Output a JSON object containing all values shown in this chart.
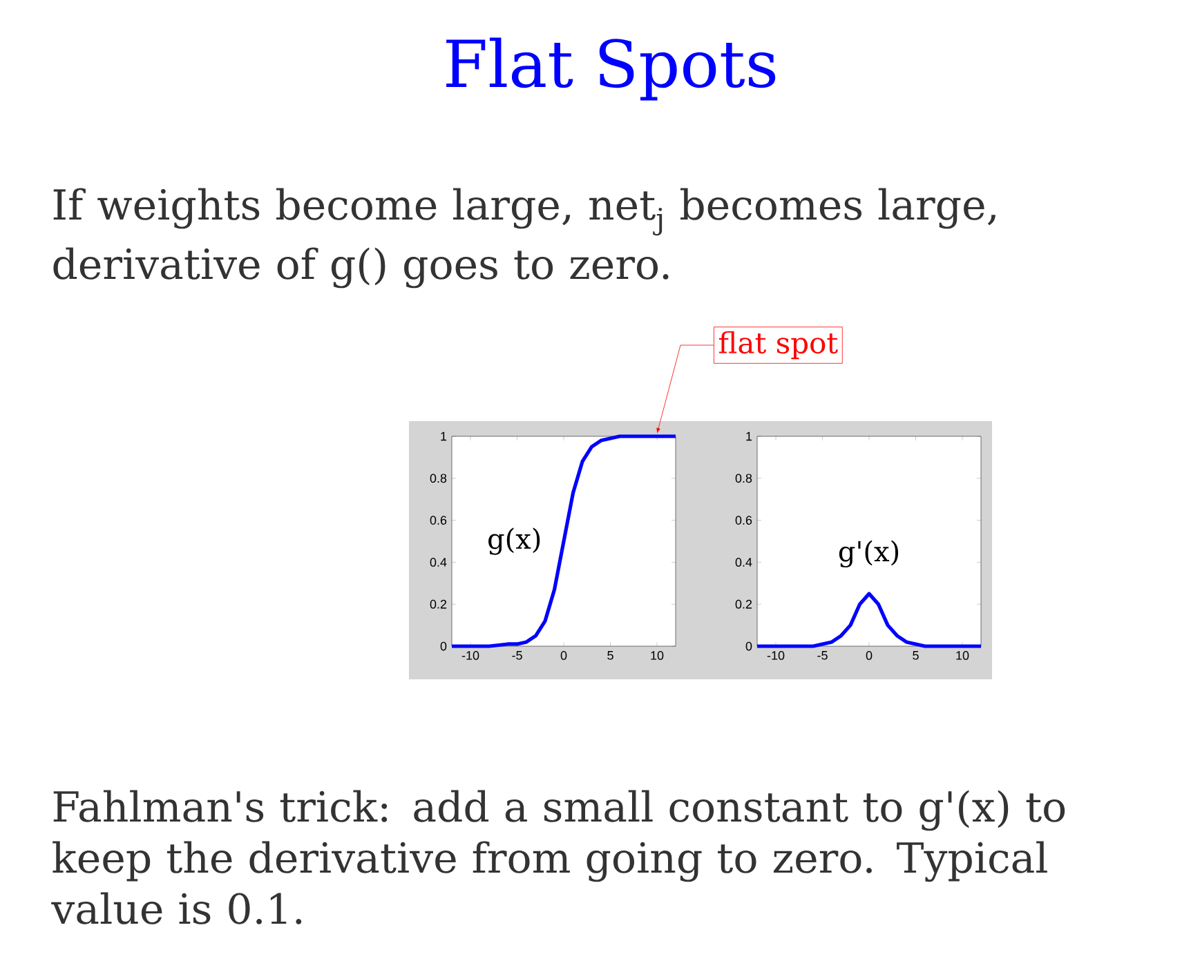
{
  "chart_data": [
    {
      "type": "line",
      "title": "Flat Spots",
      "annotations": [
        "If weights become large, net$_{j}$ becomes large, derivative of g() goes to zero.",
        {
          "text": "flat spot",
          "x": 10,
          "y": 1
        }
      ],
      "x": [
        -12,
        -8,
        -6,
        -5,
        -4,
        -3,
        -2,
        -1,
        0,
        1,
        2,
        3,
        4,
        5,
        6,
        8,
        12
      ],
      "series": [
        {
          "name": "g(x)",
          "color": "#0000ff",
          "values": [
            0,
            0,
            0.01,
            0.01,
            0.02,
            0.05,
            0.12,
            0.27,
            0.5,
            0.73,
            0.88,
            0.95,
            0.98,
            0.99,
            1,
            1,
            1
          ]
        }
      ],
      "xlim": [
        -12,
        12
      ],
      "ylim": [
        0,
        1
      ],
      "xticks": [
        -10,
        -5,
        0,
        5,
        10
      ],
      "yticks": [
        0,
        0.2,
        0.4,
        0.6,
        0.8,
        1
      ],
      "marker": "none",
      "line_style": "solid"
    },
    {
      "type": "line",
      "annotations": [
        "Fahlman's trick:  add a small constant to g'(x) to keep the derivative from going to zero.  Typical value is 0.1."
      ],
      "x": [
        -12,
        -8,
        -6,
        -5,
        -4,
        -3,
        -2,
        -1,
        0,
        1,
        2,
        3,
        4,
        5,
        6,
        8,
        12
      ],
      "series": [
        {
          "name": "g'(x)",
          "color": "#0000ff",
          "values": [
            0,
            0,
            0,
            0.01,
            0.02,
            0.05,
            0.1,
            0.2,
            0.25,
            0.2,
            0.1,
            0.05,
            0.02,
            0.01,
            0,
            0,
            0
          ]
        }
      ],
      "xlim": [
        -12,
        12
      ],
      "ylim": [
        0,
        1
      ],
      "xticks": [
        -10,
        -5,
        0,
        5,
        10
      ],
      "yticks": [
        0,
        0.2,
        0.4,
        0.6,
        0.8,
        1
      ],
      "marker": "none",
      "line_style": "solid"
    }
  ]
}
